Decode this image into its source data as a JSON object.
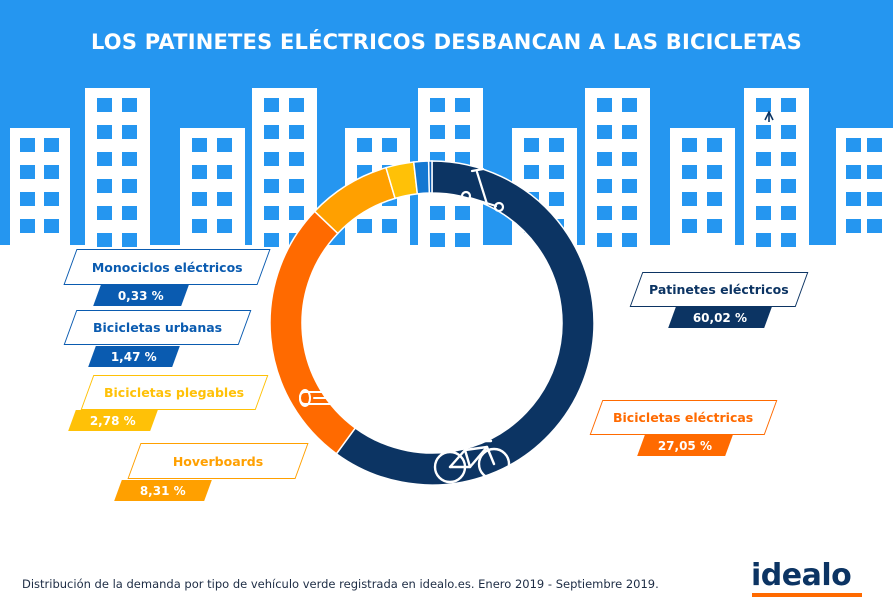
{
  "title": "LOS PATINETES ELÉCTRICOS DESBANCAN A LAS BICICLETAS",
  "footer": "Distribución de la demanda por tipo de vehículo verde registrada en idealo.es. Enero 2019 - Septiembre 2019.",
  "brand": "idealo",
  "colors": {
    "sky": "#2596f0",
    "buildings": "#ffffff",
    "patinetes": "#0c3463",
    "electricas": "#ff6a00",
    "hoverboards": "#ffa000",
    "plegables": "#ffc107",
    "urbanas": "#1478d2",
    "monociclos": "#0a5bb0"
  },
  "icons": [
    "scooter-icon",
    "bicycle-icon",
    "hoverboard-icon"
  ],
  "chart_data": {
    "type": "pie",
    "donut": true,
    "title": "LOS PATINETES ELÉCTRICOS DESBANCAN A LAS BICICLETAS",
    "categories": [
      "Patinetes eléctricos",
      "Bicicletas eléctricas",
      "Hoverboards",
      "Bicicletas plegables",
      "Bicicletas urbanas",
      "Monociclos eléctricos"
    ],
    "values": [
      60.02,
      27.05,
      8.31,
      2.78,
      1.47,
      0.33
    ],
    "value_labels": [
      "60,02 %",
      "27,05 %",
      "8,31 %",
      "2,78 %",
      "1,47 %",
      "0,33 %"
    ],
    "colors": [
      "#0c3463",
      "#ff6a00",
      "#ffa000",
      "#ffc107",
      "#1478d2",
      "#0a5bb0"
    ]
  }
}
